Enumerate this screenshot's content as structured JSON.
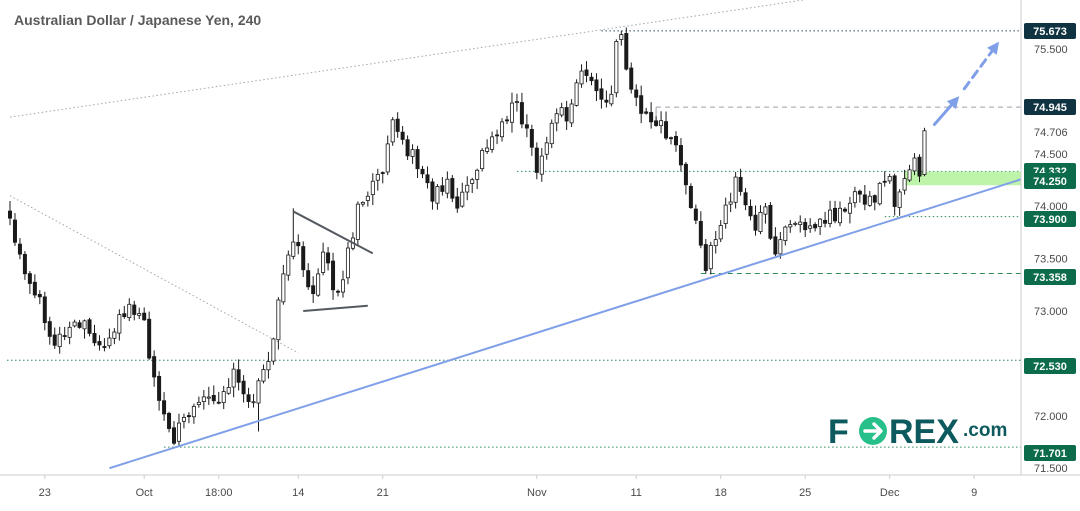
{
  "title": "Australian Dollar / Japanese Yen, 240",
  "logo": {
    "prefix": "F",
    "middle": "REX",
    "suffix": ".com"
  },
  "colors": {
    "candle": "#1a1a1a",
    "trendline": "#7f9fe8",
    "support": "#2e8b57",
    "dashed": "#9aa0a8",
    "tag_green": "#0b6b4a",
    "tag_dark": "#0f3340",
    "zone": "#a8f08c",
    "logo_circle": "#27c08a"
  },
  "chart_data": {
    "type": "candlestick",
    "symbol": "AUDJPY",
    "timeframe": "240",
    "ylim": [
      71.5,
      75.85
    ],
    "y_ticks": [
      71.5,
      72.0,
      73.0,
      73.5,
      74.0,
      74.5,
      74.706,
      75.5
    ],
    "x_ticks": [
      "23",
      "Oct",
      "18:00",
      "14",
      "21",
      "Nov",
      "11",
      "18",
      "25",
      "Dec",
      "9"
    ],
    "x_tick_index": [
      7,
      27,
      42,
      58,
      75,
      106,
      126,
      143,
      160,
      177,
      194
    ],
    "levels": [
      {
        "value": 75.673,
        "label": "75.673",
        "style": "dotted",
        "color": "dark"
      },
      {
        "value": 74.945,
        "label": "74.945",
        "style": "dashed",
        "color": "dark"
      },
      {
        "value": 74.332,
        "label": "74.332",
        "style": "dotted",
        "color": "green"
      },
      {
        "value": 74.25,
        "label": "74.250",
        "style": "zone",
        "color": "green"
      },
      {
        "value": 73.9,
        "label": "73.900",
        "style": "dotted",
        "color": "green"
      },
      {
        "value": 73.358,
        "label": "73.358",
        "style": "dashed",
        "color": "green"
      },
      {
        "value": 72.53,
        "label": "72.530",
        "style": "dotted",
        "color": "green"
      },
      {
        "value": 71.701,
        "label": "71.701",
        "style": "dotted",
        "color": "green"
      }
    ],
    "anchors": [
      [
        0,
        73.9
      ],
      [
        3,
        73.4
      ],
      [
        6,
        73.1
      ],
      [
        9,
        72.7
      ],
      [
        12,
        72.85
      ],
      [
        15,
        72.9
      ],
      [
        18,
        72.6
      ],
      [
        21,
        72.85
      ],
      [
        24,
        73.05
      ],
      [
        27,
        72.9
      ],
      [
        29,
        72.3
      ],
      [
        31,
        71.95
      ],
      [
        33,
        71.8
      ],
      [
        36,
        72.0
      ],
      [
        39,
        72.25
      ],
      [
        42,
        72.15
      ],
      [
        45,
        72.4
      ],
      [
        48,
        72.1
      ],
      [
        50,
        72.3
      ],
      [
        52,
        72.55
      ],
      [
        54,
        73.05
      ],
      [
        56,
        73.6
      ],
      [
        58,
        73.6
      ],
      [
        61,
        73.15
      ],
      [
        63,
        73.5
      ],
      [
        66,
        73.15
      ],
      [
        68,
        73.55
      ],
      [
        70,
        74.0
      ],
      [
        72,
        74.15
      ],
      [
        75,
        74.3
      ],
      [
        77,
        74.75
      ],
      [
        80,
        74.55
      ],
      [
        82,
        74.4
      ],
      [
        85,
        74.1
      ],
      [
        88,
        74.2
      ],
      [
        90,
        74.0
      ],
      [
        93,
        74.3
      ],
      [
        96,
        74.6
      ],
      [
        99,
        74.75
      ],
      [
        102,
        75.0
      ],
      [
        104,
        74.7
      ],
      [
        106,
        74.4
      ],
      [
        108,
        74.6
      ],
      [
        110,
        74.95
      ],
      [
        112,
        74.85
      ],
      [
        115,
        75.3
      ],
      [
        118,
        75.1
      ],
      [
        121,
        75.0
      ],
      [
        122,
        75.55
      ],
      [
        123,
        75.6
      ],
      [
        125,
        75.15
      ],
      [
        127,
        74.9
      ],
      [
        129,
        74.85
      ],
      [
        131,
        74.75
      ],
      [
        133,
        74.7
      ],
      [
        135,
        74.4
      ],
      [
        136,
        74.2
      ],
      [
        138,
        73.8
      ],
      [
        140,
        73.4
      ],
      [
        142,
        73.75
      ],
      [
        144,
        74.0
      ],
      [
        146,
        74.2
      ],
      [
        148,
        74.05
      ],
      [
        150,
        73.8
      ],
      [
        152,
        73.95
      ],
      [
        154,
        73.55
      ],
      [
        156,
        73.8
      ],
      [
        158,
        73.9
      ],
      [
        160,
        73.7
      ],
      [
        162,
        73.8
      ],
      [
        165,
        73.9
      ],
      [
        168,
        73.95
      ],
      [
        170,
        74.1
      ],
      [
        172,
        74.05
      ],
      [
        175,
        74.15
      ],
      [
        177,
        74.25
      ],
      [
        178,
        73.95
      ],
      [
        180,
        74.3
      ],
      [
        182,
        74.45
      ],
      [
        183,
        74.35
      ],
      [
        184,
        74.72
      ]
    ],
    "annotations": [
      {
        "type": "trendline",
        "from": [
          20,
          71.5
        ],
        "to": [
          211,
          74.37
        ],
        "color": "trendline"
      },
      {
        "type": "dotted_line",
        "from": [
          0,
          74.85
        ],
        "to": [
          160,
          75.97
        ],
        "color": "gray"
      },
      {
        "type": "dotted_line",
        "from": [
          0,
          74.1
        ],
        "to": [
          58,
          72.6
        ],
        "color": "gray"
      },
      {
        "type": "pennant",
        "upper": [
          [
            57,
            73.95
          ],
          [
            73,
            73.55
          ]
        ],
        "lower": [
          [
            59,
            73.0
          ],
          [
            72,
            73.05
          ]
        ]
      },
      {
        "type": "arrow_solid",
        "from": [
          186,
          74.78
        ],
        "to": [
          191,
          75.05
        ]
      },
      {
        "type": "arrow_dashed",
        "from": [
          192,
          75.12
        ],
        "to": [
          199,
          75.57
        ]
      }
    ]
  }
}
